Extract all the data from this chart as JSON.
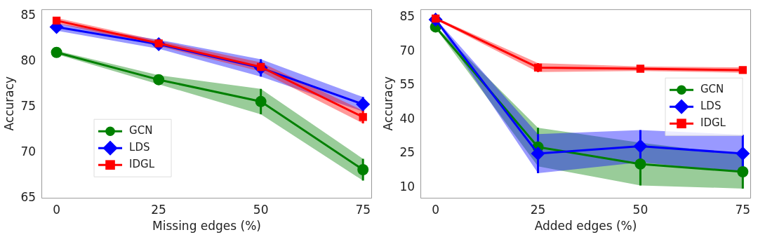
{
  "chart_data": [
    {
      "type": "line",
      "xlabel": "Missing edges (%)",
      "ylabel": "Accuracy",
      "x": [
        0,
        25,
        50,
        75
      ],
      "xlim": [
        -3.7,
        77.2
      ],
      "xticks": [
        0,
        25,
        50,
        75
      ],
      "ylim": [
        65,
        85.75
      ],
      "yticks": [
        65,
        70,
        75,
        80,
        85
      ],
      "grid": false,
      "legend": "bottom left",
      "line_style": "solid",
      "series": [
        {
          "name": "GCN",
          "color": "#008000",
          "marker": "circle",
          "values": [
            81.0,
            78.0,
            75.6,
            68.1
          ],
          "errors": [
            0.2,
            0.5,
            1.4,
            1.2
          ],
          "lower": [
            80.8,
            77.5,
            74.2,
            66.9
          ],
          "upper": [
            81.2,
            78.5,
            77.0,
            69.3
          ]
        },
        {
          "name": "LDS",
          "color": "#0000ff",
          "marker": "diamond",
          "values": [
            83.8,
            81.9,
            79.3,
            75.3
          ],
          "errors": [
            0.4,
            0.5,
            0.95,
            0.8
          ],
          "lower": [
            83.4,
            81.4,
            78.35,
            74.5
          ],
          "upper": [
            84.2,
            82.4,
            80.25,
            76.1
          ]
        },
        {
          "name": "IDGL",
          "color": "#ff0000",
          "marker": "square",
          "values": [
            84.5,
            82.0,
            79.4,
            73.9
          ],
          "errors": [
            null,
            null,
            null,
            0.7
          ],
          "lower": [
            84.2,
            81.7,
            78.9,
            73.2
          ],
          "upper": [
            84.8,
            82.3,
            79.9,
            74.6
          ]
        }
      ]
    },
    {
      "type": "line",
      "xlabel": "Added edges (%)",
      "ylabel": "Accuracy",
      "x": [
        0,
        25,
        50,
        75
      ],
      "xlim": [
        -3.7,
        77.0
      ],
      "xticks": [
        0,
        25,
        50,
        75
      ],
      "ylim": [
        5.5,
        88.6
      ],
      "yticks": [
        10,
        25,
        40,
        55,
        70,
        85
      ],
      "grid": false,
      "legend": "right",
      "line_style": "solid",
      "series": [
        {
          "name": "GCN",
          "color": "#008000",
          "marker": "circle",
          "values": [
            80.8,
            27.9,
            20.4,
            17.0
          ],
          "errors": [
            null,
            8.5,
            9.4,
            7.4
          ],
          "lower": [
            80.3,
            19.4,
            11.0,
            9.6
          ],
          "upper": [
            81.3,
            36.4,
            29.8,
            24.4
          ]
        },
        {
          "name": "LDS",
          "color": "#0000ff",
          "marker": "diamond",
          "values": [
            84.0,
            25.0,
            28.3,
            25.0
          ],
          "errors": [
            null,
            8.6,
            7.1,
            8.3
          ],
          "lower": [
            83.5,
            16.4,
            21.2,
            16.7
          ],
          "upper": [
            84.5,
            33.6,
            35.4,
            33.3
          ]
        },
        {
          "name": "IDGL",
          "color": "#ff0000",
          "marker": "square",
          "values": [
            84.5,
            62.9,
            62.4,
            61.8
          ],
          "errors": [
            null,
            2.0,
            1.0,
            1.2
          ],
          "lower": [
            84.0,
            60.9,
            61.4,
            60.6
          ],
          "upper": [
            85.0,
            64.9,
            63.4,
            63.0
          ]
        }
      ]
    }
  ]
}
